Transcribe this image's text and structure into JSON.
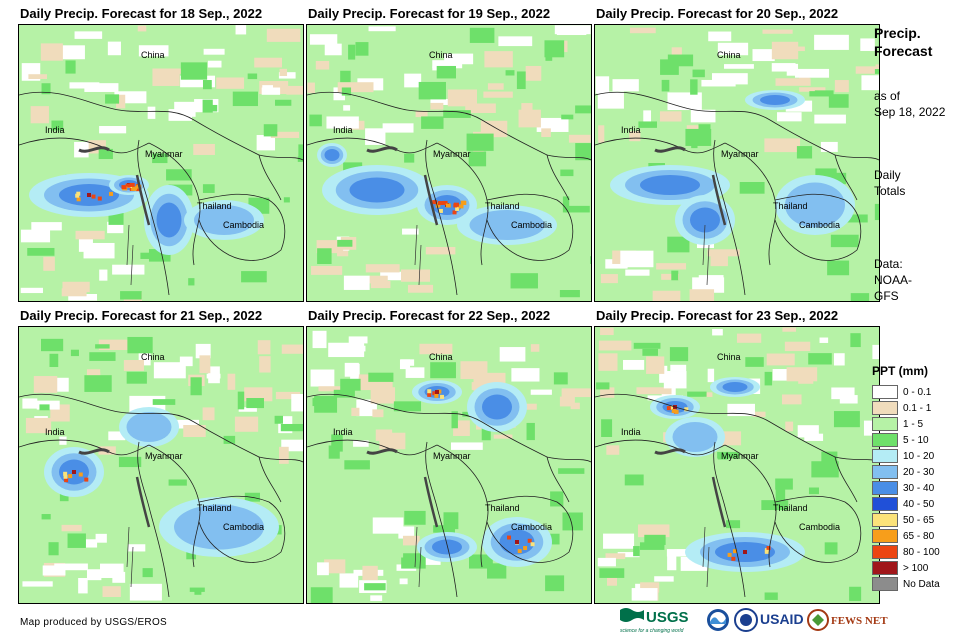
{
  "panels": [
    {
      "title": "Daily Precip. Forecast for 18 Sep., 2022"
    },
    {
      "title": "Daily Precip. Forecast for 19 Sep., 2022"
    },
    {
      "title": "Daily Precip. Forecast for 20 Sep., 2022"
    },
    {
      "title": "Daily Precip. Forecast for 21 Sep., 2022"
    },
    {
      "title": "Daily Precip. Forecast for 22 Sep., 2022"
    },
    {
      "title": "Daily Precip. Forecast for 23 Sep., 2022"
    }
  ],
  "map_labels": {
    "china": "China",
    "india": "India",
    "myanmar": "Myanmar",
    "thailand": "Thailand",
    "cambodia": "Cambodia"
  },
  "side": {
    "title_line1": "Precip.",
    "title_line2": "Forecast",
    "asof_line1": "as of",
    "asof_line2": "Sep 18, 2022",
    "totals_line1": "Daily",
    "totals_line2": "Totals",
    "data_line1": "Data:",
    "data_line2": "NOAA-",
    "data_line3": "GFS"
  },
  "legend": {
    "title": "PPT (mm)",
    "items": [
      {
        "label": "0 - 0.1",
        "color": "#ffffff"
      },
      {
        "label": "0.1 - 1",
        "color": "#f0dcbc"
      },
      {
        "label": "1 - 5",
        "color": "#b6f2a6"
      },
      {
        "label": "5 - 10",
        "color": "#6ee06a"
      },
      {
        "label": "10 - 20",
        "color": "#b4ecf5"
      },
      {
        "label": "20 - 30",
        "color": "#82bff0"
      },
      {
        "label": "30 - 40",
        "color": "#4a8ee6"
      },
      {
        "label": "40 - 50",
        "color": "#2050d8"
      },
      {
        "label": "50 - 65",
        "color": "#fbe27a"
      },
      {
        "label": "65 - 80",
        "color": "#f79e1b"
      },
      {
        "label": "80 - 100",
        "color": "#ec4512"
      },
      {
        "label": "> 100",
        "color": "#a0161a"
      },
      {
        "label": "No Data",
        "color": "#8c8c8c"
      }
    ]
  },
  "credit": "Map produced by USGS/EROS",
  "logos": {
    "usgs": "USGS",
    "usgs_tag": "science for a changing world",
    "usaid": "USAID",
    "fewsnet": "FEWS NET"
  }
}
